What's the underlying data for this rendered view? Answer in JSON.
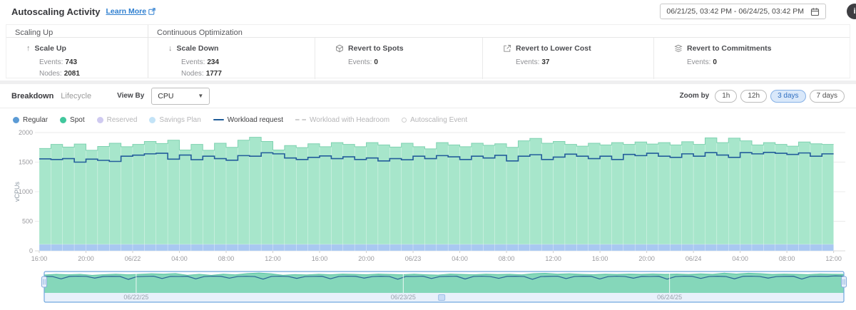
{
  "header": {
    "title": "Autoscaling Activity",
    "learn_more": "Learn More",
    "date_range": "06/21/25, 03:42 PM - 06/24/25, 03:42 PM",
    "info": "i"
  },
  "summary": {
    "groups": [
      {
        "label": "Scaling Up",
        "key": "scaling",
        "metrics": [
          {
            "icon": "arrow-up",
            "label": "Scale Up",
            "stats": [
              {
                "k": "Events:",
                "v": "743"
              },
              {
                "k": "Nodes:",
                "v": "2081"
              }
            ]
          }
        ]
      },
      {
        "label": "Continuous Optimization",
        "key": "continuous",
        "metrics": [
          {
            "icon": "arrow-down",
            "label": "Scale Down",
            "stats": [
              {
                "k": "Events:",
                "v": "234"
              },
              {
                "k": "Nodes:",
                "v": "1777"
              }
            ]
          },
          {
            "icon": "spot-cube",
            "label": "Revert to Spots",
            "stats": [
              {
                "k": "Events:",
                "v": "0"
              }
            ]
          },
          {
            "icon": "lower-cost",
            "label": "Revert to Lower Cost",
            "stats": [
              {
                "k": "Events:",
                "v": "37"
              }
            ]
          },
          {
            "icon": "commitments",
            "label": "Revert to Commitments",
            "stats": [
              {
                "k": "Events:",
                "v": "0"
              }
            ]
          }
        ]
      }
    ]
  },
  "controls": {
    "tabs": [
      {
        "label": "Breakdown",
        "active": true
      },
      {
        "label": "Lifecycle",
        "active": false
      }
    ],
    "view_by_label": "View By",
    "view_by_value": "CPU",
    "zoom_label": "Zoom by",
    "zoom_options": [
      {
        "label": "1h",
        "active": false
      },
      {
        "label": "12h",
        "active": false
      },
      {
        "label": "3 days",
        "active": true
      },
      {
        "label": "7 days",
        "active": false
      }
    ]
  },
  "legend": [
    {
      "label": "Regular",
      "swatch": "dot",
      "color": "#5b9bd5",
      "active": true
    },
    {
      "label": "Spot",
      "swatch": "dot",
      "color": "#41c79d",
      "active": true
    },
    {
      "label": "Reserved",
      "swatch": "dot",
      "color": "#cfcaf0",
      "active": false
    },
    {
      "label": "Savings Plan",
      "swatch": "dot",
      "color": "#c3e3f7",
      "active": false
    },
    {
      "label": "Workload request",
      "swatch": "line",
      "color": "#1f5c99",
      "active": true
    },
    {
      "label": "Workload with Headroom",
      "swatch": "dashed",
      "color": "#cfcfcf",
      "active": false
    },
    {
      "label": "Autoscaling Event",
      "swatch": "ring",
      "color": "#cfcfcf",
      "active": false
    }
  ],
  "chart_data": {
    "type": "area",
    "title": "",
    "xlabel": "",
    "ylabel": "vCPUs",
    "ylim": [
      0,
      2000
    ],
    "y_ticks": [
      0,
      500,
      1000,
      1500,
      2000
    ],
    "hours_span": 69,
    "label_every_hours": 4,
    "x_tick_labels": [
      "16:00",
      "20:00",
      "06/22",
      "04:00",
      "08:00",
      "12:00",
      "16:00",
      "20:00",
      "06/23",
      "04:00",
      "08:00",
      "12:00",
      "16:00",
      "20:00",
      "06/24",
      "04:00",
      "08:00",
      "12:00"
    ],
    "grid": true,
    "legend_position": "top-left",
    "series": [
      {
        "name": "Regular",
        "type": "area",
        "color": "#a9c8f1",
        "constant": 110,
        "points": 68
      },
      {
        "name": "Spot",
        "type": "area",
        "color": "#a7e6cb",
        "edge_color": "#7ed2b0",
        "values": [
          1730,
          1800,
          1755,
          1805,
          1700,
          1765,
          1820,
          1760,
          1800,
          1850,
          1815,
          1870,
          1705,
          1800,
          1700,
          1820,
          1750,
          1870,
          1920,
          1850,
          1705,
          1780,
          1745,
          1810,
          1760,
          1830,
          1800,
          1760,
          1830,
          1790,
          1755,
          1820,
          1760,
          1725,
          1830,
          1790,
          1760,
          1820,
          1785,
          1810,
          1750,
          1860,
          1900,
          1820,
          1850,
          1800,
          1770,
          1820,
          1790,
          1830,
          1800,
          1840,
          1805,
          1830,
          1790,
          1845,
          1800,
          1910,
          1830,
          1905,
          1860,
          1790,
          1830,
          1800,
          1770,
          1840,
          1810,
          1800
        ]
      },
      {
        "name": "Workload request",
        "type": "step-line",
        "color": "#235d9b",
        "values": [
          1555,
          1545,
          1560,
          1500,
          1550,
          1530,
          1512,
          1600,
          1618,
          1640,
          1650,
          1550,
          1620,
          1542,
          1600,
          1560,
          1532,
          1610,
          1600,
          1658,
          1640,
          1570,
          1545,
          1580,
          1605,
          1560,
          1590,
          1545,
          1570,
          1520,
          1560,
          1540,
          1600,
          1560,
          1610,
          1590,
          1545,
          1600,
          1570,
          1615,
          1520,
          1600,
          1625,
          1545,
          1585,
          1635,
          1600,
          1560,
          1600,
          1545,
          1630,
          1610,
          1650,
          1600,
          1580,
          1640,
          1600,
          1660,
          1620,
          1580,
          1660,
          1640,
          1665,
          1650,
          1630,
          1655,
          1600,
          1640
        ]
      }
    ],
    "navigator": {
      "area_color": "#85d7ba",
      "area_top_color": "#58c3a2",
      "line_color": "#2a6496",
      "dates": [
        "06/22/25",
        "06/23/25",
        "06/24/25"
      ],
      "date_fractions": [
        0.115,
        0.449,
        0.782
      ],
      "grip_fraction": 0.497,
      "line": [
        1600,
        1585,
        1360,
        1595,
        1615,
        1600,
        1430,
        1585,
        1605,
        1595,
        1310,
        1575,
        1600,
        1618,
        1390,
        1600,
        1592,
        1612,
        1355,
        1582,
        1618,
        1602,
        1425,
        1592,
        1608,
        1582,
        1335,
        1598,
        1618,
        1592,
        1405,
        1582,
        1600,
        1612,
        1365,
        1592,
        1618,
        1602,
        1432,
        1582,
        1612,
        1592,
        1322,
        1600,
        1592,
        1618,
        1392,
        1582,
        1602,
        1612,
        1345,
        1592,
        1618,
        1582,
        1412,
        1602,
        1612,
        1592,
        1315,
        1582,
        1602,
        1618,
        1385,
        1592,
        1612,
        1602,
        1352,
        1582,
        1618,
        1592,
        1422,
        1602,
        1592,
        1612,
        1335,
        1582,
        1618,
        1602,
        1402,
        1592,
        1612,
        1582,
        1362,
        1602,
        1618,
        1592,
        1432,
        1582,
        1602,
        1612,
        1342,
        1592,
        1618,
        1602,
        1648,
        1625
      ]
    }
  }
}
